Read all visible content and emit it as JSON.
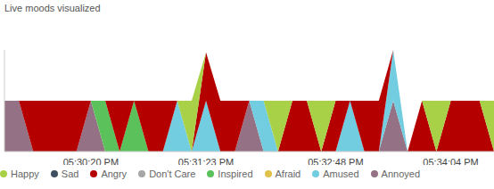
{
  "title": "Live moods visualized",
  "chart_data": {
    "type": "area",
    "stacked": true,
    "grid": false,
    "legend": "bottom",
    "tick_labels": "x",
    "categories": [
      null,
      null,
      null,
      null,
      null,
      null,
      "05:30:20 PM",
      null,
      null,
      null,
      null,
      null,
      null,
      null,
      "05:31:23 PM",
      null,
      null,
      null,
      null,
      null,
      null,
      null,
      null,
      "05:32:48 PM",
      null,
      null,
      null,
      null,
      null,
      null,
      null,
      "05:34:04 PM",
      null,
      null,
      null
    ],
    "ylim": [
      0,
      2
    ],
    "yticks": [
      0,
      2
    ],
    "series": [
      {
        "name": "Happy",
        "color": "#a8d148",
        "values": [
          0,
          0,
          0,
          0,
          0,
          0,
          0,
          0,
          0,
          0,
          0,
          0,
          0,
          1,
          0,
          0,
          0,
          0,
          0,
          1,
          0,
          0,
          1,
          0,
          0,
          0,
          0,
          0,
          0,
          0,
          1,
          0,
          0,
          0,
          1
        ]
      },
      {
        "name": "Sad",
        "color": "#3d4f60",
        "values": [
          0,
          0,
          0,
          0,
          0,
          0,
          0,
          0,
          0,
          0,
          0,
          0,
          0,
          0,
          0,
          0,
          0,
          0,
          0,
          0,
          0,
          0,
          0,
          0,
          0,
          0,
          0,
          0,
          0,
          0,
          0,
          0,
          0,
          0,
          0
        ]
      },
      {
        "name": "Angry",
        "color": "#b50000",
        "values": [
          0,
          0,
          1,
          1,
          1,
          1,
          0,
          0,
          1,
          0,
          1,
          1,
          0,
          0,
          0.95,
          1,
          1,
          0,
          0,
          0,
          1,
          1,
          0,
          1,
          0,
          1,
          1,
          0,
          0,
          1,
          0,
          1,
          1,
          1,
          0
        ]
      },
      {
        "name": "Don't Care",
        "color": "#a6a6a6",
        "values": [
          0,
          0,
          0,
          0,
          0,
          0,
          0,
          0,
          0,
          0,
          0,
          0,
          0,
          0,
          0,
          0,
          0,
          0,
          0,
          0,
          0,
          0,
          0,
          0,
          0,
          0,
          0,
          0,
          0,
          0,
          0,
          0,
          0,
          0,
          0
        ]
      },
      {
        "name": "Inspired",
        "color": "#5bc25b",
        "values": [
          0,
          0,
          0,
          0,
          0,
          0,
          0,
          1,
          0,
          1,
          0,
          0,
          0,
          0,
          0,
          0,
          0,
          0,
          0,
          0,
          0,
          0,
          0,
          0,
          0,
          0,
          0,
          0,
          0,
          0,
          0,
          0,
          0,
          0,
          0
        ]
      },
      {
        "name": "Afraid",
        "color": "#e0c24a",
        "values": [
          0,
          0,
          0,
          0,
          0,
          0,
          0,
          0,
          0,
          0,
          0,
          0,
          0,
          0,
          0,
          0,
          0,
          0,
          0,
          0,
          0,
          0,
          0,
          0,
          0,
          0,
          0,
          0,
          0,
          0,
          0,
          0,
          0,
          0,
          0
        ]
      },
      {
        "name": "Amused",
        "color": "#72cde0",
        "values": [
          0,
          0,
          0,
          0,
          0,
          0,
          0,
          0,
          0,
          0,
          0,
          0,
          1,
          0,
          1,
          0,
          0,
          0,
          1,
          0,
          0,
          0,
          0,
          0,
          1,
          0,
          0,
          1,
          0,
          0,
          0,
          0,
          0,
          0,
          0
        ]
      },
      {
        "name": "Annoyed",
        "color": "#957185",
        "values": [
          1,
          1,
          0,
          0,
          0,
          0,
          1,
          0,
          0,
          0,
          0,
          0,
          0,
          0,
          0,
          0,
          0,
          1,
          0,
          0,
          0,
          0,
          0,
          0,
          0,
          0,
          0,
          1,
          0,
          0,
          0,
          0,
          0,
          0,
          0
        ]
      }
    ]
  }
}
